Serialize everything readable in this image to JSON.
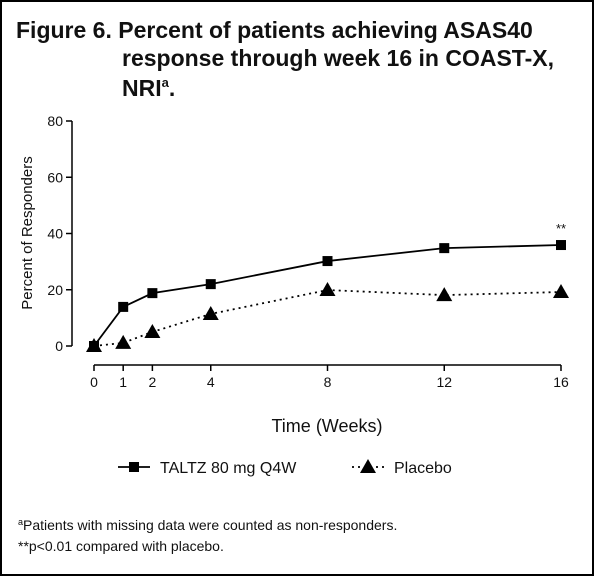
{
  "chart_data": {
    "type": "line",
    "title_lines": [
      "Figure 6. Percent of patients achieving ASAS40",
      "response through week 16 in COAST-X,",
      "NRI"
    ],
    "title_marker": "a",
    "title_end": ".",
    "x_label": "Time (Weeks)",
    "y_label": "Percent of Responders",
    "x": [
      0,
      1,
      2,
      4,
      8,
      12,
      16
    ],
    "xlim": [
      0,
      16
    ],
    "xticks": [
      0,
      1,
      2,
      4,
      8,
      12,
      16
    ],
    "ylim": [
      0,
      80
    ],
    "yticks": [
      0,
      20,
      40,
      60,
      80
    ],
    "series": [
      {
        "name": "TALTZ 80 mg Q4W",
        "color": "#000000",
        "marker": "square",
        "dash": "solid",
        "values": [
          0,
          13.9,
          18.8,
          22.0,
          30.2,
          34.8,
          35.9
        ]
      },
      {
        "name": "Placebo",
        "color": "#000000",
        "marker": "triangle",
        "dash": "dotted",
        "values": [
          0,
          1.1,
          5.0,
          11.4,
          19.9,
          18.1,
          19.2
        ]
      }
    ],
    "annotation": "**",
    "footnotes": [
      {
        "marker": "a",
        "text": "Patients with missing data were counted as non-responders."
      },
      {
        "marker": "",
        "text": "**p<0.01 compared with placebo."
      }
    ]
  }
}
